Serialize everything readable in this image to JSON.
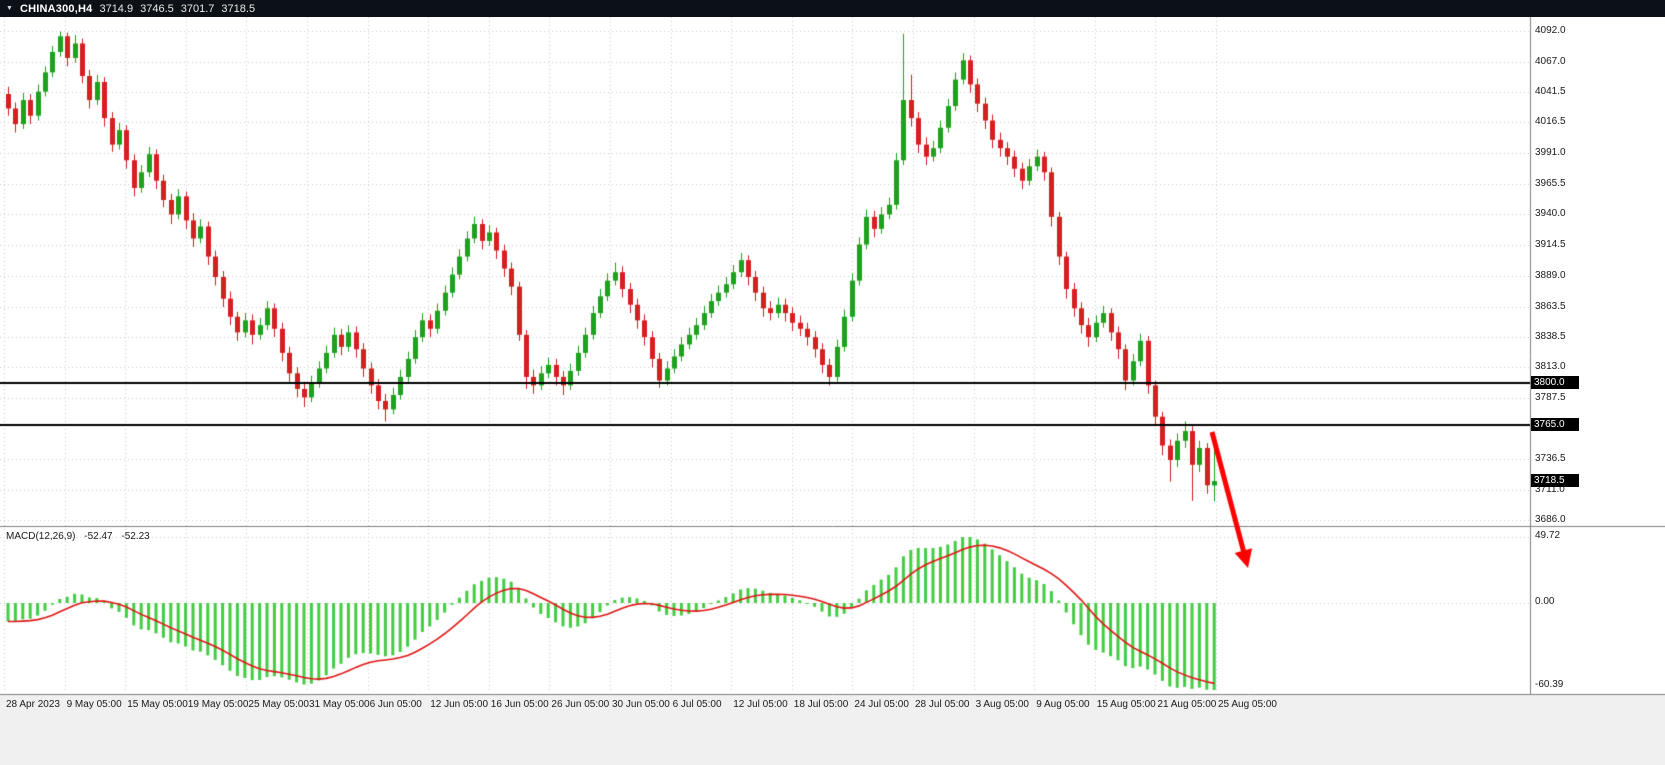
{
  "header": {
    "symbol": "CHINA300,H4",
    "open": "3714.9",
    "high": "3746.5",
    "low": "3701.7",
    "close": "3718.5"
  },
  "price_axis": {
    "labels": [
      "4092.0",
      "4067.0",
      "4041.5",
      "4016.5",
      "3991.0",
      "3965.5",
      "3940.0",
      "3914.5",
      "3889.0",
      "3863.5",
      "3838.5",
      "3813.0",
      "3787.5",
      "3736.5",
      "3711.0",
      "3686.0"
    ]
  },
  "time_axis": {
    "labels": [
      "28 Apr 2023",
      "9 May 05:00",
      "15 May 05:00",
      "19 May 05:00",
      "25 May 05:00",
      "31 May 05:00",
      "6 Jun 05:00",
      "12 Jun 05:00",
      "16 Jun 05:00",
      "26 Jun 05:00",
      "30 Jun 05:00",
      "6 Jul 05:00",
      "12 Jul 05:00",
      "18 Jul 05:00",
      "24 Jul 05:00",
      "28 Jul 05:00",
      "3 Aug 05:00",
      "9 Aug 05:00",
      "15 Aug 05:00",
      "21 Aug 05:00",
      "25 Aug 05:00"
    ]
  },
  "levels": [
    {
      "price": 3800.0,
      "label": "3800.0"
    },
    {
      "price": 3765.0,
      "label": "3765.0"
    }
  ],
  "price_tag": {
    "price": 3718.5,
    "label": "3718.5"
  },
  "macd_panel": {
    "title": "MACD(12,26,9)",
    "main_value": "-52.47",
    "signal_value": "-52.23",
    "axis_top": "49.72",
    "axis_zero": "0.00",
    "axis_bottom": "-60.39"
  },
  "colors": {
    "header_bg": "#0c1117",
    "bull": "#1ea11e",
    "bear": "#d42020",
    "hist": "#44cc44",
    "signal": "#e01616",
    "level": "#000000",
    "grid": "#cdcdcd",
    "separator": "#808080",
    "tag_bg": "#000000",
    "tag_text": "#ffffff",
    "arrow": "#ff0000",
    "axis_bg": "#f0f0f0"
  },
  "chart_data": [
    {
      "type": "candlestick",
      "title": "CHINA300,H4",
      "timeframe": "H4",
      "current_ohlc": {
        "open": 3714.9,
        "high": 3746.5,
        "low": 3701.7,
        "close": 3718.5
      },
      "ylim": [
        3682,
        4104
      ],
      "y_ticks": [
        4092,
        4067,
        4041.5,
        4016.5,
        3991,
        3965.5,
        3940,
        3914.5,
        3889,
        3863.5,
        3838.5,
        3813,
        3787.5,
        3736.5,
        3711,
        3686
      ],
      "x_labels": [
        "28 Apr 2023",
        "9 May 05:00",
        "15 May 05:00",
        "19 May 05:00",
        "25 May 05:00",
        "31 May 05:00",
        "6 Jun 05:00",
        "12 Jun 05:00",
        "16 Jun 05:00",
        "26 Jun 05:00",
        "30 Jun 05:00",
        "6 Jul 05:00",
        "12 Jul 05:00",
        "18 Jul 05:00",
        "24 Jul 05:00",
        "28 Jul 05:00",
        "3 Aug 05:00",
        "9 Aug 05:00",
        "15 Aug 05:00",
        "21 Aug 05:00",
        "25 Aug 05:00"
      ],
      "horizontal_levels": [
        3800,
        3765
      ],
      "annotations": [
        {
          "type": "arrow",
          "direction": "down-right",
          "color": "#ff0000"
        }
      ],
      "candles": [
        [
          4040,
          4046,
          4022,
          4028
        ],
        [
          4028,
          4033,
          4008,
          4015
        ],
        [
          4015,
          4041,
          4011,
          4035
        ],
        [
          4035,
          4040,
          4015,
          4022
        ],
        [
          4022,
          4048,
          4018,
          4042
        ],
        [
          4042,
          4063,
          4038,
          4058
        ],
        [
          4058,
          4080,
          4054,
          4075
        ],
        [
          4075,
          4092,
          4071,
          4088
        ],
        [
          4088,
          4091,
          4063,
          4070
        ],
        [
          4070,
          4089,
          4066,
          4082
        ],
        [
          4082,
          4086,
          4049,
          4055
        ],
        [
          4055,
          4060,
          4028,
          4035
        ],
        [
          4035,
          4056,
          4031,
          4050
        ],
        [
          4050,
          4054,
          4013,
          4020
        ],
        [
          4020,
          4025,
          3992,
          3998
        ],
        [
          3998,
          4016,
          3994,
          4010
        ],
        [
          4010,
          4014,
          3978,
          3985
        ],
        [
          3985,
          3990,
          3955,
          3962
        ],
        [
          3962,
          3981,
          3958,
          3975
        ],
        [
          3975,
          3996,
          3971,
          3990
        ],
        [
          3990,
          3994,
          3961,
          3968
        ],
        [
          3968,
          3973,
          3946,
          3952
        ],
        [
          3952,
          3957,
          3932,
          3940
        ],
        [
          3940,
          3961,
          3936,
          3955
        ],
        [
          3955,
          3959,
          3928,
          3935
        ],
        [
          3935,
          3941,
          3913,
          3920
        ],
        [
          3920,
          3936,
          3916,
          3930
        ],
        [
          3930,
          3934,
          3898,
          3905
        ],
        [
          3905,
          3910,
          3881,
          3888
        ],
        [
          3888,
          3893,
          3863,
          3870
        ],
        [
          3870,
          3876,
          3848,
          3855
        ],
        [
          3855,
          3859,
          3835,
          3842
        ],
        [
          3842,
          3858,
          3838,
          3852
        ],
        [
          3852,
          3857,
          3832,
          3840
        ],
        [
          3840,
          3854,
          3836,
          3848
        ],
        [
          3848,
          3868,
          3844,
          3862
        ],
        [
          3862,
          3866,
          3838,
          3845
        ],
        [
          3845,
          3850,
          3818,
          3825
        ],
        [
          3825,
          3830,
          3801,
          3808
        ],
        [
          3808,
          3813,
          3788,
          3795
        ],
        [
          3795,
          3801,
          3780,
          3788
        ],
        [
          3788,
          3806,
          3784,
          3800
        ],
        [
          3800,
          3818,
          3796,
          3812
        ],
        [
          3812,
          3831,
          3808,
          3825
        ],
        [
          3825,
          3846,
          3821,
          3840
        ],
        [
          3840,
          3845,
          3823,
          3830
        ],
        [
          3830,
          3848,
          3826,
          3842
        ],
        [
          3842,
          3847,
          3821,
          3828
        ],
        [
          3828,
          3833,
          3805,
          3812
        ],
        [
          3812,
          3817,
          3791,
          3798
        ],
        [
          3798,
          3803,
          3778,
          3785
        ],
        [
          3785,
          3791,
          3768,
          3778
        ],
        [
          3778,
          3796,
          3774,
          3790
        ],
        [
          3790,
          3811,
          3786,
          3805
        ],
        [
          3805,
          3826,
          3801,
          3820
        ],
        [
          3820,
          3844,
          3816,
          3838
        ],
        [
          3838,
          3858,
          3834,
          3852
        ],
        [
          3852,
          3857,
          3838,
          3845
        ],
        [
          3845,
          3866,
          3841,
          3860
        ],
        [
          3860,
          3881,
          3856,
          3875
        ],
        [
          3875,
          3896,
          3871,
          3890
        ],
        [
          3890,
          3911,
          3886,
          3905
        ],
        [
          3905,
          3926,
          3901,
          3920
        ],
        [
          3920,
          3938,
          3916,
          3932
        ],
        [
          3932,
          3936,
          3911,
          3918
        ],
        [
          3918,
          3931,
          3914,
          3925
        ],
        [
          3925,
          3929,
          3903,
          3910
        ],
        [
          3910,
          3915,
          3888,
          3895
        ],
        [
          3895,
          3900,
          3873,
          3880
        ],
        [
          3880,
          3884,
          3835,
          3840
        ],
        [
          3840,
          3844,
          3795,
          3805
        ],
        [
          3805,
          3811,
          3791,
          3798
        ],
        [
          3798,
          3814,
          3794,
          3808
        ],
        [
          3808,
          3821,
          3804,
          3815
        ],
        [
          3815,
          3820,
          3798,
          3805
        ],
        [
          3805,
          3810,
          3790,
          3798
        ],
        [
          3798,
          3816,
          3794,
          3810
        ],
        [
          3810,
          3831,
          3806,
          3825
        ],
        [
          3825,
          3846,
          3821,
          3840
        ],
        [
          3840,
          3864,
          3836,
          3858
        ],
        [
          3858,
          3878,
          3854,
          3872
        ],
        [
          3872,
          3891,
          3868,
          3885
        ],
        [
          3885,
          3900,
          3881,
          3892
        ],
        [
          3892,
          3897,
          3871,
          3878
        ],
        [
          3878,
          3883,
          3858,
          3865
        ],
        [
          3865,
          3870,
          3845,
          3852
        ],
        [
          3852,
          3857,
          3831,
          3838
        ],
        [
          3838,
          3843,
          3813,
          3820
        ],
        [
          3820,
          3825,
          3796,
          3802
        ],
        [
          3802,
          3818,
          3798,
          3812
        ],
        [
          3812,
          3828,
          3808,
          3822
        ],
        [
          3822,
          3838,
          3818,
          3832
        ],
        [
          3832,
          3846,
          3828,
          3840
        ],
        [
          3840,
          3854,
          3836,
          3848
        ],
        [
          3848,
          3864,
          3844,
          3858
        ],
        [
          3858,
          3874,
          3854,
          3868
        ],
        [
          3868,
          3881,
          3864,
          3875
        ],
        [
          3875,
          3888,
          3871,
          3882
        ],
        [
          3882,
          3898,
          3878,
          3892
        ],
        [
          3892,
          3908,
          3888,
          3902
        ],
        [
          3902,
          3906,
          3881,
          3888
        ],
        [
          3888,
          3893,
          3868,
          3875
        ],
        [
          3875,
          3880,
          3855,
          3862
        ],
        [
          3862,
          3868,
          3852,
          3858
        ],
        [
          3858,
          3871,
          3854,
          3865
        ],
        [
          3865,
          3870,
          3851,
          3858
        ],
        [
          3858,
          3863,
          3843,
          3850
        ],
        [
          3850,
          3856,
          3839,
          3845
        ],
        [
          3845,
          3850,
          3831,
          3838
        ],
        [
          3838,
          3843,
          3821,
          3828
        ],
        [
          3828,
          3833,
          3808,
          3815
        ],
        [
          3815,
          3820,
          3798,
          3805
        ],
        [
          3805,
          3836,
          3801,
          3830
        ],
        [
          3830,
          3861,
          3826,
          3855
        ],
        [
          3855,
          3891,
          3851,
          3885
        ],
        [
          3885,
          3921,
          3881,
          3915
        ],
        [
          3915,
          3944,
          3911,
          3938
        ],
        [
          3938,
          3943,
          3921,
          3928
        ],
        [
          3928,
          3946,
          3924,
          3940
        ],
        [
          3940,
          3954,
          3936,
          3948
        ],
        [
          3948,
          3991,
          3944,
          3985
        ],
        [
          3985,
          4090,
          3981,
          4035
        ],
        [
          4035,
          4056,
          4013,
          4020
        ],
        [
          4020,
          4025,
          3991,
          3998
        ],
        [
          3998,
          4004,
          3981,
          3988
        ],
        [
          3988,
          4001,
          3984,
          3995
        ],
        [
          3995,
          4018,
          3991,
          4012
        ],
        [
          4012,
          4036,
          4008,
          4030
        ],
        [
          4030,
          4058,
          4026,
          4052
        ],
        [
          4052,
          4074,
          4048,
          4068
        ],
        [
          4068,
          4072,
          4041,
          4048
        ],
        [
          4048,
          4053,
          4025,
          4032
        ],
        [
          4032,
          4037,
          4011,
          4018
        ],
        [
          4018,
          4023,
          3995,
          4002
        ],
        [
          4002,
          4008,
          3988,
          3995
        ],
        [
          3995,
          4000,
          3981,
          3988
        ],
        [
          3988,
          3993,
          3971,
          3978
        ],
        [
          3978,
          3983,
          3961,
          3968
        ],
        [
          3968,
          3986,
          3964,
          3980
        ],
        [
          3980,
          3994,
          3976,
          3988
        ],
        [
          3988,
          3992,
          3968,
          3975
        ],
        [
          3975,
          3979,
          3930,
          3938
        ],
        [
          3938,
          3942,
          3898,
          3905
        ],
        [
          3905,
          3909,
          3870,
          3878
        ],
        [
          3878,
          3883,
          3855,
          3862
        ],
        [
          3862,
          3867,
          3841,
          3848
        ],
        [
          3848,
          3854,
          3830,
          3838
        ],
        [
          3838,
          3856,
          3834,
          3850
        ],
        [
          3850,
          3864,
          3846,
          3858
        ],
        [
          3858,
          3862,
          3835,
          3842
        ],
        [
          3842,
          3847,
          3820,
          3828
        ],
        [
          3828,
          3832,
          3794,
          3802
        ],
        [
          3802,
          3824,
          3798,
          3818
        ],
        [
          3818,
          3841,
          3814,
          3835
        ],
        [
          3835,
          3839,
          3791,
          3798
        ],
        [
          3798,
          3802,
          3764,
          3772
        ],
        [
          3772,
          3776,
          3740,
          3748
        ],
        [
          3748,
          3753,
          3718,
          3736
        ],
        [
          3736,
          3758,
          3730,
          3752
        ],
        [
          3752,
          3768,
          3746,
          3760
        ],
        [
          3760,
          3764,
          3702,
          3732
        ],
        [
          3732,
          3752,
          3726,
          3746
        ],
        [
          3746,
          3750,
          3708,
          3715
        ],
        [
          3714.9,
          3746.5,
          3701.7,
          3718.5
        ]
      ]
    },
    {
      "type": "bar+line",
      "name": "MACD(12,26,9)",
      "params": {
        "fast": 12,
        "slow": 26,
        "signal": 9
      },
      "current": {
        "macd": -52.47,
        "signal": -52.23
      },
      "y_ticks": [
        49.72,
        0.0,
        -60.39
      ],
      "histogram": "EMA12-EMA26 of candle closes above",
      "signal_line": "EMA9 of histogram"
    }
  ]
}
